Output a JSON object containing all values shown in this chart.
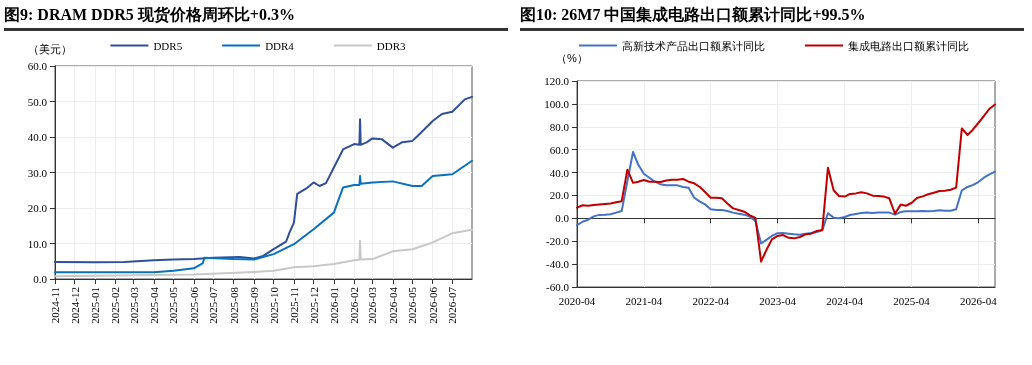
{
  "chart_data": [
    {
      "type": "line",
      "title": "图9:  DRAM DDR5 现货价格周环比+0.3%",
      "ylabel": "（美元）",
      "legend": "top",
      "grid": true,
      "marker": "none",
      "line_style": "solid",
      "xlim": [
        "2024-11-01",
        "2026-07-31"
      ],
      "xticks": [
        "2024-11",
        "2024-12",
        "2025-01",
        "2025-02",
        "2025-03",
        "2025-04",
        "2025-05",
        "2025-06",
        "2025-07",
        "2025-08",
        "2025-09",
        "2025-10",
        "2025-11",
        "2025-12",
        "2026-01",
        "2026-02",
        "2026-03",
        "2026-04",
        "2026-05",
        "2026-06",
        "2026-07"
      ],
      "ylim": [
        0,
        60
      ],
      "yticks": [
        {
          "value": 0,
          "label": "0.0"
        },
        {
          "value": 10,
          "label": "10.0"
        },
        {
          "value": 20,
          "label": "20.0"
        },
        {
          "value": 30,
          "label": "30.0"
        },
        {
          "value": 40,
          "label": "40.0"
        },
        {
          "value": 50,
          "label": "50.0"
        },
        {
          "value": 60,
          "label": "60.0"
        }
      ],
      "series": [
        {
          "name": "DDR5",
          "color": "#2f4f9a",
          "x": [
            "2024-11-01",
            "2025-01-01",
            "2025-02-15",
            "2025-04-01",
            "2025-05-01",
            "2025-06-01",
            "2025-07-01",
            "2025-08-10",
            "2025-09-01",
            "2025-09-15",
            "2025-10-01",
            "2025-10-20",
            "2025-10-25",
            "2025-11-01",
            "2025-11-06",
            "2025-11-20",
            "2025-12-01",
            "2025-12-10",
            "2025-12-20",
            "2026-01-01",
            "2026-01-15",
            "2026-02-01",
            "2026-02-09",
            "2026-02-10",
            "2026-02-11",
            "2026-02-20",
            "2026-03-01",
            "2026-03-15",
            "2026-03-25",
            "2026-04-01",
            "2026-04-15",
            "2026-05-01",
            "2026-05-10",
            "2026-06-01",
            "2026-06-15",
            "2026-07-01",
            "2026-07-20",
            "2026-07-31"
          ],
          "values": [
            4.8,
            4.7,
            4.8,
            5.3,
            5.5,
            5.6,
            6.0,
            6.2,
            5.8,
            6.5,
            8.4,
            10.5,
            13,
            15.9,
            24,
            25.5,
            27.2,
            26.2,
            27,
            31.4,
            36.5,
            38,
            37.8,
            45,
            37.8,
            38.5,
            39.6,
            39.4,
            38,
            37,
            38.5,
            38.9,
            40.5,
            44.5,
            46.5,
            47.1,
            50.6,
            51.3
          ]
        },
        {
          "name": "DDR4",
          "color": "#0a70c0",
          "x": [
            "2024-11-01",
            "2025-04-01",
            "2025-05-01",
            "2025-06-01",
            "2025-06-15",
            "2025-06-17",
            "2025-08-01",
            "2025-09-01",
            "2025-10-01",
            "2025-11-01",
            "2025-12-01",
            "2026-01-01",
            "2026-01-15",
            "2026-02-01",
            "2026-02-09",
            "2026-02-10",
            "2026-02-11",
            "2026-03-01",
            "2026-04-01",
            "2026-05-01",
            "2026-05-15",
            "2026-06-01",
            "2026-07-01",
            "2026-07-31"
          ],
          "values": [
            1.9,
            1.9,
            2.3,
            3.0,
            4.5,
            6.0,
            5.6,
            5.5,
            7.0,
            9.8,
            14,
            18.7,
            25.8,
            26.5,
            26.5,
            29,
            26.8,
            27.2,
            27.5,
            26.2,
            26.2,
            29,
            29.5,
            33.3
          ]
        },
        {
          "name": "DDR3",
          "color": "#c8c8c8",
          "x": [
            "2024-11-01",
            "2025-06-01",
            "2025-09-01",
            "2025-10-01",
            "2025-11-01",
            "2025-12-01",
            "2026-01-01",
            "2026-02-01",
            "2026-02-09",
            "2026-02-10",
            "2026-02-11",
            "2026-03-01",
            "2026-04-01",
            "2026-05-01",
            "2026-06-01",
            "2026-07-01",
            "2026-07-31"
          ],
          "values": [
            0.8,
            1.3,
            2.0,
            2.3,
            3.3,
            3.6,
            4.2,
            5.3,
            5.4,
            10.8,
            5.5,
            5.6,
            7.8,
            8.4,
            10.3,
            12.9,
            13.9
          ]
        }
      ]
    },
    {
      "type": "line",
      "title": "图10:  26M7 中国集成电路出口额累计同比+99.5%",
      "ylabel": "（%）",
      "legend": "top",
      "grid": true,
      "marker": "none",
      "line_style": "solid",
      "xlim": [
        "2020-04",
        "2026-07"
      ],
      "xticks": [
        "2020-04",
        "2021-04",
        "2022-04",
        "2023-04",
        "2024-04",
        "2025-04",
        "2026-04"
      ],
      "ylim": [
        -60,
        120
      ],
      "yticks": [
        {
          "value": -60,
          "label": "-60.0"
        },
        {
          "value": -40,
          "label": "-40.0"
        },
        {
          "value": -20,
          "label": "-20.0"
        },
        {
          "value": 0,
          "label": "0.0"
        },
        {
          "value": 20,
          "label": "20.0"
        },
        {
          "value": 40,
          "label": "40.0"
        },
        {
          "value": 60,
          "label": "60.0"
        },
        {
          "value": 80,
          "label": "80.0"
        },
        {
          "value": 100,
          "label": "100.0"
        },
        {
          "value": 120,
          "label": "120.0"
        }
      ],
      "x": [
        "2020-04",
        "2020-05",
        "2020-06",
        "2020-07",
        "2020-08",
        "2020-09",
        "2020-10",
        "2020-11",
        "2020-12",
        "2021-01",
        "2021-02",
        "2021-03",
        "2021-04",
        "2021-05",
        "2021-06",
        "2021-07",
        "2021-08",
        "2021-09",
        "2021-10",
        "2021-11",
        "2021-12",
        "2022-01",
        "2022-02",
        "2022-03",
        "2022-04",
        "2022-05",
        "2022-06",
        "2022-07",
        "2022-08",
        "2022-09",
        "2022-10",
        "2022-11",
        "2022-12",
        "2023-01",
        "2023-02",
        "2023-03",
        "2023-04",
        "2023-05",
        "2023-06",
        "2023-07",
        "2023-08",
        "2023-09",
        "2023-10",
        "2023-11",
        "2023-12",
        "2024-01",
        "2024-02",
        "2024-03",
        "2024-04",
        "2024-05",
        "2024-06",
        "2024-07",
        "2024-08",
        "2024-09",
        "2024-10",
        "2024-11",
        "2024-12",
        "2025-01",
        "2025-02",
        "2025-03",
        "2025-04",
        "2025-05",
        "2025-06",
        "2025-07",
        "2025-08",
        "2025-09",
        "2025-10",
        "2025-11",
        "2025-12",
        "2026-01",
        "2026-02",
        "2026-03",
        "2026-04",
        "2026-05",
        "2026-06",
        "2026-07"
      ],
      "series": [
        {
          "name": "高新技术产品出口额累计同比",
          "color": "#4472c4",
          "values": [
            -6,
            -3,
            -1.2,
            1.7,
            3,
            3.2,
            3.5,
            5,
            6.4,
            32.6,
            58,
            47,
            39,
            35.5,
            32,
            29.7,
            29,
            29,
            28.8,
            27.4,
            26.8,
            18,
            14.6,
            12.2,
            7.9,
            7.3,
            7.3,
            6.4,
            5,
            4,
            3.2,
            1.5,
            -2.3,
            -22,
            -18.6,
            -15.4,
            -13,
            -12.8,
            -13.4,
            -14,
            -14.3,
            -13.4,
            -12.8,
            -12,
            -10.5,
            4.4,
            0.6,
            0,
            1.2,
            2.9,
            3.8,
            4.7,
            5,
            4.7,
            5,
            5.2,
            5,
            3.2,
            5.5,
            6.1,
            6.1,
            6.1,
            6.4,
            6.1,
            6.4,
            7,
            6.7,
            6.7,
            7.9,
            24.5,
            27.4,
            29,
            31.7,
            35.5,
            38.4,
            40.8
          ]
        },
        {
          "name": "集成电路出口额累计同比",
          "color": "#c00000",
          "values": [
            9.3,
            11.4,
            11,
            11.6,
            12,
            12.5,
            13,
            14,
            15,
            42.5,
            31,
            32,
            33.5,
            32,
            32,
            31.7,
            33,
            33.8,
            33.8,
            34.4,
            32,
            30.6,
            27.4,
            23,
            18,
            18,
            17.5,
            13,
            8.7,
            7.3,
            5.8,
            2.6,
            0.3,
            -37.8,
            -27,
            -18.4,
            -15.4,
            -14.6,
            -17,
            -17.5,
            -16.3,
            -14,
            -13.4,
            -11,
            -10.2,
            44.3,
            24.5,
            19.5,
            19,
            21.3,
            21.8,
            22.7,
            21.8,
            19.8,
            19.5,
            19,
            17.5,
            4,
            12,
            11,
            13.4,
            17.8,
            19.2,
            21,
            22.4,
            23.9,
            24.2,
            25,
            26.8,
            78.6,
            72.8,
            77.2,
            83.3,
            89.4,
            95.8,
            99.5
          ]
        }
      ]
    }
  ]
}
